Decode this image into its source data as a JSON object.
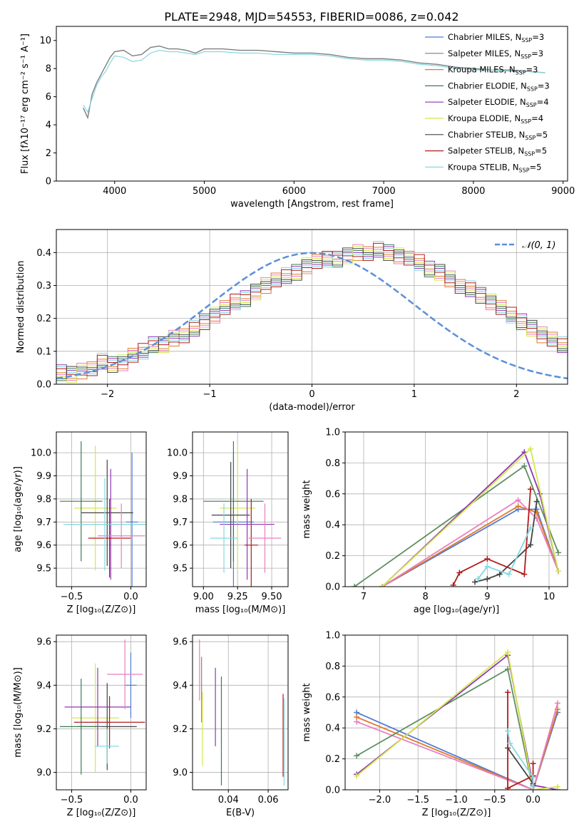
{
  "title": "PLATE=2948, MJD=54553, FIBERID=0086, z=0.042",
  "colors": {
    "c1": "#4c7bd3",
    "c2": "#7f7f7f",
    "c3": "#e07a2c",
    "c4": "#3d7a52",
    "c5": "#8e36b5",
    "c6": "#d4e84a",
    "c7": "#444444",
    "c8": "#b01c1c",
    "c9": "#84d9e0",
    "c10": "#e87fbf",
    "c11": "#5e8f62",
    "normal": "#5b8fd9"
  },
  "chart_data": [
    {
      "id": "spectrum",
      "type": "line",
      "xlabel": "wavelength [Angstrom, rest frame]",
      "ylabel": "Flux [fλ10⁻¹⁷ erg cm⁻² s⁻¹ A⁻¹]",
      "xlim": [
        3350,
        9050
      ],
      "ylim": [
        0,
        11
      ],
      "xticks": [
        "4000",
        "5000",
        "6000",
        "7000",
        "8000",
        "9000"
      ],
      "yticks": [
        "0",
        "2",
        "4",
        "6",
        "8",
        "10"
      ],
      "grid": false,
      "legend_position": "top-right",
      "legend": [
        {
          "label": "Chabrier MILES, N",
          "sub": "SSP",
          "tail": "=3",
          "color": "#4c7bd3"
        },
        {
          "label": "Salpeter MILES, N",
          "sub": "SSP",
          "tail": "=3",
          "color": "#7f7f7f"
        },
        {
          "label": "Kroupa MILES, N",
          "sub": "SSP",
          "tail": "=3",
          "color": "#e07a2c"
        },
        {
          "label": "Chabrier ELODIE, N",
          "sub": "SSP",
          "tail": "=3",
          "color": "#3d7a52"
        },
        {
          "label": "Salpeter ELODIE, N",
          "sub": "SSP",
          "tail": "=4",
          "color": "#8e36b5"
        },
        {
          "label": "Kroupa ELODIE, N",
          "sub": "SSP",
          "tail": "=4",
          "color": "#d4e84a"
        },
        {
          "label": "Chabrier STELIB, N",
          "sub": "SSP",
          "tail": "=5",
          "color": "#444444"
        },
        {
          "label": "Salpeter STELIB, N",
          "sub": "SSP",
          "tail": "=5",
          "color": "#b01c1c"
        },
        {
          "label": "Kroupa STELIB, N",
          "sub": "SSP",
          "tail": "=5",
          "color": "#84d9e0"
        }
      ],
      "series": [
        {
          "name": "data",
          "color": "#7f7f7f",
          "x": [
            3650,
            3700,
            3750,
            3800,
            3850,
            3900,
            3950,
            4000,
            4100,
            4200,
            4300,
            4400,
            4500,
            4600,
            4700,
            4800,
            4900,
            5000,
            5200,
            5400,
            5600,
            5800,
            6000,
            6200,
            6400,
            6600,
            6800,
            7000,
            7200,
            7400,
            7600,
            7800,
            8000,
            8200,
            8400,
            8600,
            8800
          ],
          "y": [
            5.2,
            4.5,
            6.2,
            7.0,
            7.6,
            8.2,
            8.8,
            9.2,
            9.3,
            8.9,
            9.0,
            9.5,
            9.6,
            9.4,
            9.4,
            9.3,
            9.1,
            9.4,
            9.4,
            9.3,
            9.3,
            9.2,
            9.1,
            9.1,
            9.0,
            8.8,
            8.7,
            8.7,
            8.6,
            8.4,
            8.3,
            8.1,
            8.0,
            7.9,
            7.9,
            7.8,
            7.7
          ]
        },
        {
          "name": "model",
          "color": "#84d9e0",
          "x": [
            3650,
            3700,
            3750,
            3800,
            3850,
            3900,
            3950,
            4000,
            4100,
            4200,
            4300,
            4400,
            4500,
            4600,
            4700,
            4800,
            4900,
            5000,
            5200,
            5400,
            5600,
            5800,
            6000,
            6200,
            6400,
            6600,
            6800,
            7000,
            7200,
            7400,
            7600,
            7800,
            8000,
            8200,
            8400,
            8600,
            8800
          ],
          "y": [
            5.4,
            4.9,
            5.9,
            6.8,
            7.4,
            7.8,
            8.4,
            8.9,
            8.8,
            8.5,
            8.6,
            9.1,
            9.3,
            9.2,
            9.2,
            9.1,
            9.0,
            9.2,
            9.2,
            9.1,
            9.1,
            9.0,
            9.0,
            9.0,
            8.9,
            8.7,
            8.6,
            8.6,
            8.5,
            8.3,
            8.2,
            8.0,
            7.9,
            7.9,
            7.8,
            7.8,
            7.7
          ]
        }
      ]
    },
    {
      "id": "residual_hist",
      "type": "bar",
      "xlabel": "(data-model)/error",
      "ylabel": "Normed distribution",
      "xlim": [
        -2.5,
        2.5
      ],
      "ylim": [
        0,
        0.47
      ],
      "xticks": [
        "−2",
        "−1",
        "0",
        "1",
        "2"
      ],
      "yticks": [
        "0.0",
        "0.1",
        "0.2",
        "0.3",
        "0.4"
      ],
      "grid": true,
      "legend_position": "top-right",
      "legend": [
        {
          "label": "𝒩(0, 1)",
          "color": "#5b8fd9"
        }
      ],
      "bin_width": 0.1,
      "bin_start": -2.5,
      "values": [
        0.035,
        0.03,
        0.04,
        0.05,
        0.07,
        0.06,
        0.065,
        0.085,
        0.1,
        0.12,
        0.12,
        0.14,
        0.15,
        0.17,
        0.19,
        0.21,
        0.23,
        0.25,
        0.26,
        0.28,
        0.3,
        0.32,
        0.33,
        0.34,
        0.36,
        0.37,
        0.38,
        0.38,
        0.39,
        0.4,
        0.4,
        0.41,
        0.4,
        0.39,
        0.38,
        0.37,
        0.35,
        0.34,
        0.32,
        0.3,
        0.29,
        0.27,
        0.25,
        0.23,
        0.21,
        0.19,
        0.17,
        0.15,
        0.14,
        0.12,
        0.1,
        0.09,
        0.08,
        0.07,
        0.06,
        0.05,
        0.045,
        0.04,
        0.035,
        0.03
      ]
    },
    {
      "id": "age_vs_Z",
      "type": "scatter",
      "xlabel": "Z [log₁₀(Z/Z⊙)]",
      "ylabel": "age  [log₁₀(age/yr)]",
      "xlim": [
        -0.63,
        0.13
      ],
      "ylim": [
        9.42,
        10.09
      ],
      "xticks": [
        "−0.5",
        "0.0"
      ],
      "yticks": [
        "9.5",
        "9.6",
        "9.7",
        "9.8",
        "9.9",
        "10.0"
      ],
      "grid": true,
      "points": [
        {
          "x": 0.01,
          "y": 9.7,
          "xerr": 0.05,
          "yerr": 0.3,
          "color": "#4c7bd3"
        },
        {
          "x": -0.3,
          "y": 9.76,
          "xerr": 0.18,
          "yerr": 0.27,
          "color": "#d4e84a"
        },
        {
          "x": -0.2,
          "y": 9.74,
          "xerr": 0.22,
          "yerr": 0.23,
          "color": "#444444"
        },
        {
          "x": -0.42,
          "y": 9.79,
          "xerr": 0.18,
          "yerr": 0.26,
          "color": "#3d7a52"
        },
        {
          "x": -0.17,
          "y": 9.69,
          "xerr": 0.38,
          "yerr": 0.24,
          "color": "#8e36b5"
        },
        {
          "x": -0.18,
          "y": 9.63,
          "xerr": 0.18,
          "yerr": 0.17,
          "color": "#b01c1c"
        },
        {
          "x": -0.08,
          "y": 9.64,
          "xerr": 0.2,
          "yerr": 0.14,
          "color": "#e87fbf"
        },
        {
          "x": -0.22,
          "y": 9.69,
          "xerr": 0.35,
          "yerr": 0.2,
          "color": "#84d9e0"
        }
      ]
    },
    {
      "id": "age_vs_mass",
      "type": "scatter",
      "xlabel": "mass [log₁₀(M/M⊙)]",
      "ylabel": "",
      "xlim": [
        8.92,
        9.62
      ],
      "ylim": [
        9.42,
        10.09
      ],
      "xticks": [
        "9.00",
        "9.25",
        "9.50"
      ],
      "yticks": [
        "9.5",
        "9.6",
        "9.7",
        "9.8",
        "9.9",
        "10.0"
      ],
      "grid": true,
      "points": [
        {
          "x": 9.22,
          "y": 9.7,
          "xerr": 0.15,
          "yerr": 0.3,
          "color": "#4c7bd3"
        },
        {
          "x": 9.25,
          "y": 9.76,
          "xerr": 0.13,
          "yerr": 0.27,
          "color": "#d4e84a"
        },
        {
          "x": 9.2,
          "y": 9.73,
          "xerr": 0.14,
          "yerr": 0.23,
          "color": "#444444"
        },
        {
          "x": 9.22,
          "y": 9.79,
          "xerr": 0.22,
          "yerr": 0.26,
          "color": "#3d7a52"
        },
        {
          "x": 9.32,
          "y": 9.69,
          "xerr": 0.2,
          "yerr": 0.24,
          "color": "#8e36b5"
        },
        {
          "x": 9.35,
          "y": 9.6,
          "xerr": 0.05,
          "yerr": 0.2,
          "color": "#b01c1c"
        },
        {
          "x": 9.45,
          "y": 9.63,
          "xerr": 0.12,
          "yerr": 0.15,
          "color": "#e87fbf"
        },
        {
          "x": 9.15,
          "y": 9.63,
          "xerr": 0.1,
          "yerr": 0.15,
          "color": "#84d9e0"
        }
      ]
    },
    {
      "id": "massweight_vs_age",
      "type": "line",
      "xlabel": "age  [log₁₀(age/yr)]",
      "ylabel": "mass weight",
      "xlim": [
        6.7,
        10.3
      ],
      "ylim": [
        0,
        1.0
      ],
      "xticks": [
        "7",
        "8",
        "9",
        "10"
      ],
      "yticks": [
        "0.0",
        "0.2",
        "0.4",
        "0.6",
        "0.8",
        "1.0"
      ],
      "grid": true,
      "series": [
        {
          "color": "#4c7bd3",
          "x": [
            7.3,
            9.5,
            9.8,
            10.15
          ],
          "y": [
            0.0,
            0.5,
            0.5,
            0.1
          ]
        },
        {
          "color": "#e07a2c",
          "x": [
            7.3,
            9.5,
            9.8,
            10.15
          ],
          "y": [
            0.0,
            0.52,
            0.48,
            0.1
          ]
        },
        {
          "color": "#e87fbf",
          "x": [
            7.3,
            9.5,
            9.8,
            10.15
          ],
          "y": [
            0.0,
            0.56,
            0.44,
            0.1
          ]
        },
        {
          "color": "#5e8f62",
          "x": [
            6.85,
            9.6,
            10.15
          ],
          "y": [
            0.0,
            0.78,
            0.22
          ]
        },
        {
          "color": "#8e36b5",
          "x": [
            7.3,
            9.6,
            9.85,
            10.15
          ],
          "y": [
            0.0,
            0.87,
            0.6,
            0.1
          ]
        },
        {
          "color": "#d4e84a",
          "x": [
            7.3,
            9.7,
            10.15
          ],
          "y": [
            0.0,
            0.89,
            0.1
          ]
        },
        {
          "color": "#444444",
          "x": [
            8.8,
            9.0,
            9.2,
            9.7,
            9.8
          ],
          "y": [
            0.03,
            0.05,
            0.08,
            0.27,
            0.55
          ]
        },
        {
          "color": "#b01c1c",
          "x": [
            8.45,
            8.55,
            9.0,
            9.6,
            9.7
          ],
          "y": [
            0.01,
            0.09,
            0.18,
            0.08,
            0.63
          ]
        },
        {
          "color": "#84d9e0",
          "x": [
            8.85,
            9.0,
            9.35,
            9.7
          ],
          "y": [
            0.05,
            0.13,
            0.08,
            0.38
          ]
        }
      ]
    },
    {
      "id": "mass_vs_Z",
      "type": "scatter",
      "xlabel": "Z [log₁₀(Z/Z⊙)]",
      "ylabel": "mass [log₁₀(M/M⊙)]",
      "xlim": [
        -0.63,
        0.13
      ],
      "ylim": [
        8.92,
        9.63
      ],
      "xticks": [
        "−0.5",
        "0.0"
      ],
      "yticks": [
        "9.0",
        "9.2",
        "9.4",
        "9.6"
      ],
      "grid": true,
      "points": [
        {
          "x": 0.0,
          "y": 9.4,
          "xerr": 0.05,
          "yerr": 0.15,
          "color": "#4c7bd3"
        },
        {
          "x": -0.3,
          "y": 9.25,
          "xerr": 0.2,
          "yerr": 0.25,
          "color": "#d4e84a"
        },
        {
          "x": -0.2,
          "y": 9.21,
          "xerr": 0.25,
          "yerr": 0.2,
          "color": "#444444"
        },
        {
          "x": -0.42,
          "y": 9.21,
          "xerr": 0.18,
          "yerr": 0.22,
          "color": "#3d7a52"
        },
        {
          "x": -0.28,
          "y": 9.3,
          "xerr": 0.28,
          "yerr": 0.18,
          "color": "#8e36b5"
        },
        {
          "x": -0.18,
          "y": 9.23,
          "xerr": 0.3,
          "yerr": 0.12,
          "color": "#b01c1c"
        },
        {
          "x": -0.05,
          "y": 9.45,
          "xerr": 0.15,
          "yerr": 0.16,
          "color": "#e87fbf"
        },
        {
          "x": -0.2,
          "y": 9.12,
          "xerr": 0.1,
          "yerr": 0.08,
          "color": "#84d9e0"
        }
      ]
    },
    {
      "id": "mass_vs_EBV",
      "type": "scatter",
      "xlabel": "E(B-V)",
      "ylabel": "",
      "xlim": [
        0.022,
        0.07
      ],
      "ylim": [
        8.92,
        9.63
      ],
      "xticks": [
        "0.04",
        "0.06"
      ],
      "yticks": [
        "9.0",
        "9.2",
        "9.4",
        "9.6"
      ],
      "grid": true,
      "points": [
        {
          "x": 0.0265,
          "y": 9.43,
          "yerr": 0.1,
          "color": "#4c7bd3"
        },
        {
          "x": 0.0265,
          "y": 9.38,
          "yerr": 0.15,
          "color": "#e07a2c"
        },
        {
          "x": 0.0255,
          "y": 9.47,
          "yerr": 0.14,
          "color": "#e87fbf"
        },
        {
          "x": 0.027,
          "y": 9.2,
          "yerr": 0.17,
          "color": "#d4e84a"
        },
        {
          "x": 0.0335,
          "y": 9.3,
          "yerr": 0.18,
          "color": "#8e36b5"
        },
        {
          "x": 0.0365,
          "y": 9.19,
          "yerr": 0.25,
          "color": "#3d7a52"
        },
        {
          "x": 0.0675,
          "y": 9.17,
          "yerr": 0.19,
          "color": "#b01c1c"
        },
        {
          "x": 0.068,
          "y": 9.14,
          "yerr": 0.2,
          "color": "#84d9e0"
        }
      ]
    },
    {
      "id": "massweight_vs_Z",
      "type": "line",
      "xlabel": "Z [log₁₀(Z/Z⊙)]",
      "ylabel": "mass weight",
      "xlim": [
        -2.45,
        0.45
      ],
      "ylim": [
        0,
        1.0
      ],
      "xticks": [
        "−2.0",
        "−1.5",
        "−1.0",
        "−0.5",
        "0.0"
      ],
      "yticks": [
        "0.0",
        "0.2",
        "0.4",
        "0.6",
        "0.8",
        "1.0"
      ],
      "grid": true,
      "series": [
        {
          "color": "#4c7bd3",
          "x": [
            -2.3,
            0.0,
            0.32
          ],
          "y": [
            0.5,
            0.0,
            0.5
          ]
        },
        {
          "color": "#e07a2c",
          "x": [
            -2.3,
            0.0,
            0.32
          ],
          "y": [
            0.47,
            0.0,
            0.52
          ]
        },
        {
          "color": "#e87fbf",
          "x": [
            -2.3,
            0.0,
            0.32
          ],
          "y": [
            0.44,
            0.0,
            0.56
          ]
        },
        {
          "color": "#5e8f62",
          "x": [
            -2.3,
            -0.33,
            0.0
          ],
          "y": [
            0.22,
            0.78,
            0.0
          ]
        },
        {
          "color": "#8e36b5",
          "x": [
            -2.3,
            -0.33,
            0.0,
            0.32
          ],
          "y": [
            0.1,
            0.87,
            0.03,
            0.0
          ]
        },
        {
          "color": "#d4e84a",
          "x": [
            -2.3,
            -0.33,
            0.0,
            0.32
          ],
          "y": [
            0.09,
            0.89,
            0.0,
            0.02
          ]
        },
        {
          "color": "#444444",
          "x": [
            -0.33,
            0.0,
            0.0
          ],
          "y": [
            0.27,
            0.04,
            0.09
          ]
        },
        {
          "color": "#b01c1c",
          "x": [
            -0.33,
            -0.33,
            0.0,
            0.0
          ],
          "y": [
            0.63,
            0.01,
            0.09,
            0.17
          ]
        },
        {
          "color": "#84d9e0",
          "x": [
            -0.33,
            -0.3,
            0.0,
            0.0
          ],
          "y": [
            0.38,
            0.3,
            0.08,
            0.02
          ]
        }
      ]
    }
  ]
}
